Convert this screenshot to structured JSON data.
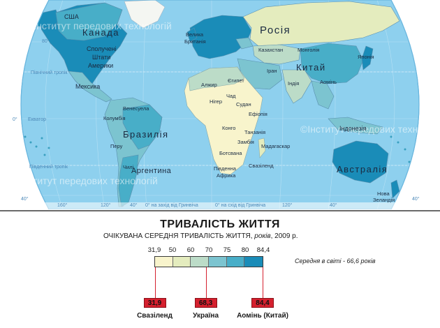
{
  "map": {
    "graticule_labels": {
      "lat_80": "80°",
      "lat_40": "40°",
      "lat_0": "0°",
      "tropic_n": "Північний тропік",
      "tropic_s": "Південний тропік",
      "equator": "Екватор",
      "lon_160w": "160°",
      "lon_120w": "120°",
      "lon_40w": "40°",
      "lon_0_w": "0° на захід від Гринвіча",
      "lon_0_e": "0° на схід від Гринвіча",
      "lon_120e": "120°",
      "lon_40s": "40°",
      "lon_r40": "40°"
    },
    "countries": {
      "usa_alaska": "США",
      "canada": "Канада",
      "usa": "Сполучені Штати Америки",
      "usa_l1": "Сполучені",
      "usa_l2": "Штати",
      "usa_l3": "Америки",
      "mexico": "Мексика",
      "venezuela": "Венесуела",
      "colombia": "Колумбія",
      "brazil": "Бразилія",
      "peru": "Перу",
      "chile": "Чилі",
      "argentina": "Аргентина",
      "uk_l1": "Велика",
      "uk_l2": "Британія",
      "russia": "Росія",
      "kazakhstan": "Казахстан",
      "mongolia": "Монголія",
      "china": "Китай",
      "iran": "Іран",
      "india": "Індія",
      "japan": "Японія",
      "aomin": "Аомінь",
      "algeria": "Алжир",
      "egypt": "Єгипет",
      "chad": "Чад",
      "niger": "Нігер",
      "sudan": "Судан",
      "ethiopia": "Ефіопія",
      "congo": "Конго",
      "tanzania": "Танзанія",
      "zambia": "Замбія",
      "madagascar": "Мадагаскар",
      "botswana": "Ботсвана",
      "swaziland": "Свазіленд",
      "south_africa_l1": "Південна",
      "south_africa_l2": "Африка",
      "indonesia": "Індонезія",
      "australia": "Австралія",
      "nz_l1": "Нова",
      "nz_l2": "Зеландія"
    },
    "watermark": "©Інститут передових технологій"
  },
  "legend": {
    "title": "ТРИВАЛІСТЬ ЖИТТЯ",
    "subtitle_main": "ОЧІКУВАНА СЕРЕДНЯ ТРИВАЛІСТЬ ЖИТТЯ,",
    "subtitle_unit": " років",
    "subtitle_year": ", 2009 р.",
    "scale_ticks": [
      "31,9",
      "50",
      "60",
      "70",
      "75",
      "80",
      "84,4"
    ],
    "scale_values": [
      31.9,
      50,
      60,
      70,
      75,
      80,
      84.4
    ],
    "scale_colors": [
      "#f8f4cc",
      "#e4ecbe",
      "#bcdcc8",
      "#7cc4d0",
      "#48aec8",
      "#1a8cb8"
    ],
    "world_average": "Середня в світі - 66,6 років",
    "markers": [
      {
        "value": "31,9",
        "value_num": 31.9,
        "name": "Свазіленд"
      },
      {
        "value": "68,3",
        "value_num": 68.3,
        "name": "Україна"
      },
      {
        "value": "84,4",
        "value_num": 84.4,
        "name": "Аомінь (Китай)"
      }
    ],
    "marker_color": "#d5202e"
  }
}
